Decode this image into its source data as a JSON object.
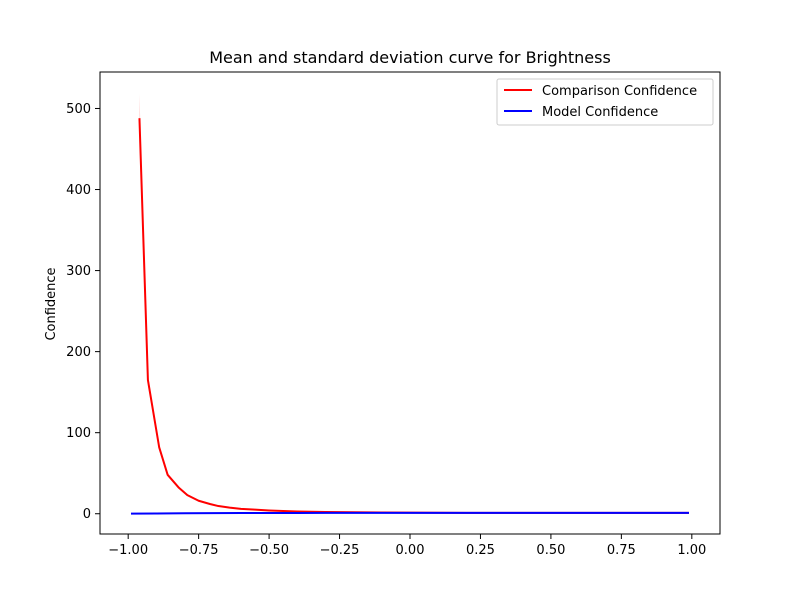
{
  "chart_data": {
    "type": "line",
    "title": "Mean and standard deviation curve for Brightness",
    "xlabel": "",
    "ylabel": "Confidence",
    "xlim": [
      -1.1,
      1.1
    ],
    "ylim": [
      -25,
      545
    ],
    "xticks": [
      -1.0,
      -0.75,
      -0.5,
      -0.25,
      0.0,
      0.25,
      0.5,
      0.75,
      1.0
    ],
    "xtick_labels": [
      "−1.00",
      "−0.75",
      "−0.50",
      "−0.25",
      "0.00",
      "0.25",
      "0.50",
      "0.75",
      "1.00"
    ],
    "yticks": [
      0,
      100,
      200,
      300,
      400,
      500
    ],
    "ytick_labels": [
      "0",
      "100",
      "200",
      "300",
      "400",
      "500"
    ],
    "grid": false,
    "legend_position": "top-right",
    "series": [
      {
        "name": "Comparison Confidence",
        "color": "#ff0000",
        "x": [
          -0.96,
          -0.93,
          -0.89,
          -0.86,
          -0.82,
          -0.79,
          -0.75,
          -0.71,
          -0.68,
          -0.64,
          -0.6,
          -0.55,
          -0.5,
          -0.45,
          -0.4,
          -0.3,
          -0.2,
          -0.1,
          0.0,
          0.1,
          0.2,
          0.3,
          0.4,
          0.5,
          0.6,
          0.7,
          0.8,
          0.9,
          0.99
        ],
        "values": [
          488,
          165,
          82,
          48,
          32,
          23,
          16,
          12,
          9.5,
          7.5,
          6,
          5,
          4,
          3.3,
          2.8,
          2.2,
          1.8,
          1.5,
          1.3,
          1.2,
          1.1,
          1.05,
          1.02,
          1.0,
          1.0,
          1.0,
          1.0,
          1.0,
          1.0
        ],
        "std_upper": [
          518,
          172,
          85,
          50,
          33,
          24,
          16.5,
          12.4,
          9.8,
          7.7,
          6.2,
          5.1,
          4.1,
          3.4,
          2.9,
          2.3,
          1.9,
          1.6,
          1.35,
          1.25,
          1.15,
          1.1,
          1.05,
          1.02,
          1.02,
          1.02,
          1.02,
          1.02,
          1.02
        ],
        "std_lower": [
          458,
          158,
          79,
          46,
          31,
          22,
          15.5,
          11.6,
          9.2,
          7.3,
          5.8,
          4.9,
          3.9,
          3.2,
          2.7,
          2.1,
          1.7,
          1.4,
          1.25,
          1.15,
          1.05,
          1.0,
          0.99,
          0.98,
          0.98,
          0.98,
          0.98,
          0.98,
          0.98
        ]
      },
      {
        "name": "Model Confidence",
        "color": "#0000ff",
        "x": [
          -0.99,
          -0.9,
          -0.8,
          -0.7,
          -0.6,
          -0.5,
          -0.4,
          -0.3,
          -0.2,
          -0.1,
          0.0,
          0.1,
          0.2,
          0.3,
          0.4,
          0.5,
          0.6,
          0.7,
          0.8,
          0.9,
          0.99
        ],
        "values": [
          0.1,
          0.3,
          0.6,
          0.8,
          0.9,
          0.95,
          0.98,
          1.0,
          1.0,
          1.0,
          1.0,
          1.0,
          1.0,
          1.0,
          1.0,
          1.0,
          1.0,
          1.0,
          1.0,
          1.0,
          1.0
        ]
      }
    ]
  }
}
